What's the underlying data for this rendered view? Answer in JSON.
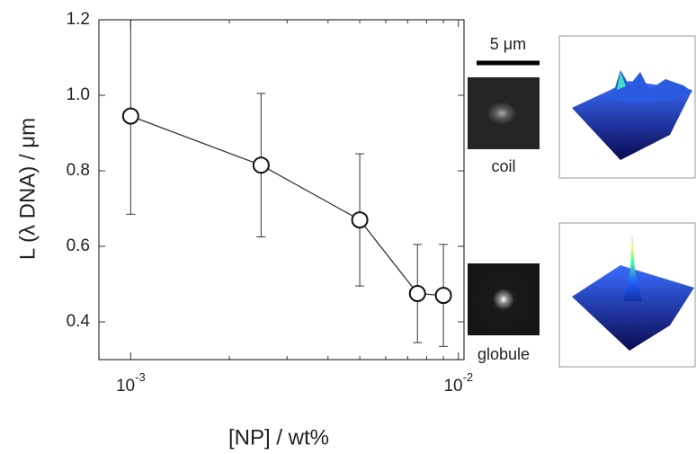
{
  "chart_data": {
    "type": "line",
    "x_label": "[NP] / wt%",
    "y_label": "L (λ DNA) / μm",
    "log_x": true,
    "xlim": [
      0.0008,
      0.0104
    ],
    "ylim": [
      0.3,
      1.2
    ],
    "xticks": [
      {
        "value": 0.001,
        "label": "10",
        "exponent": "-3"
      },
      {
        "value": 0.01,
        "label": "10",
        "exponent": "-2"
      }
    ],
    "xminorticks": [
      0.002,
      0.003,
      0.004,
      0.005,
      0.006,
      0.007,
      0.008,
      0.009
    ],
    "yticks": [
      0.4,
      0.6,
      0.8,
      {
        "value": 1.0,
        "label": "1.0"
      },
      1.2
    ],
    "x": [
      0.001,
      0.0025,
      0.005,
      0.0075,
      0.009
    ],
    "series": [
      {
        "color": "#333333",
        "values": [
          0.945,
          0.815,
          0.67,
          0.475,
          0.47
        ],
        "errors": [
          0.26,
          0.19,
          0.175,
          0.13,
          0.135
        ]
      }
    ]
  },
  "panels": {
    "scale_bar": "5 μm",
    "coil": "coil",
    "globule": "globule"
  }
}
